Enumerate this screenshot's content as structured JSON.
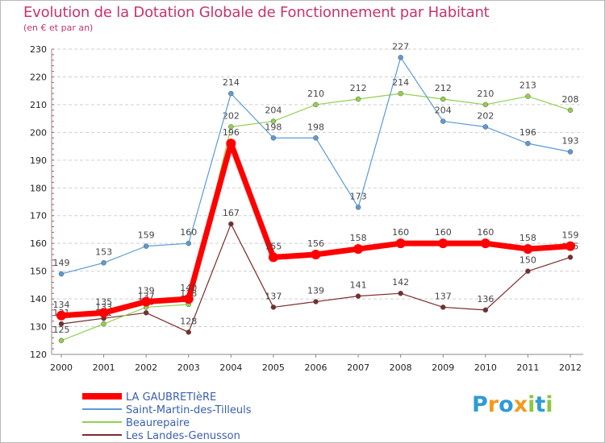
{
  "chart_data": {
    "type": "line",
    "title": "Evolution de la Dotation Globale de Fonctionnement par Habitant",
    "subtitle": "(en € et par an)",
    "xlabel": "",
    "ylabel": "",
    "x": [
      "2000",
      "2001",
      "2002",
      "2003",
      "2004",
      "2005",
      "2006",
      "2007",
      "2008",
      "2009",
      "2010",
      "2011",
      "2012"
    ],
    "ylim": [
      120,
      230
    ],
    "yticks": [
      120,
      130,
      140,
      150,
      160,
      170,
      180,
      190,
      200,
      210,
      220,
      230
    ],
    "grid": "horizontal",
    "legend": "bottom-left",
    "series": [
      {
        "name": "LA GAUBRETIèRE",
        "color": "#ff0000",
        "values": [
          134,
          135,
          139,
          140,
          196,
          155,
          156,
          158,
          160,
          160,
          160,
          158,
          159
        ]
      },
      {
        "name": "Saint-Martin-des-Tilleuls",
        "color": "#5b9bd5",
        "values": [
          149,
          153,
          159,
          160,
          214,
          198,
          198,
          173,
          227,
          204,
          202,
          196,
          193
        ]
      },
      {
        "name": "Beaurepaire",
        "color": "#92d050",
        "values": [
          125,
          131,
          137,
          138,
          202,
          204,
          210,
          212,
          214,
          212,
          210,
          213,
          208
        ]
      },
      {
        "name": "Les Landes-Genusson",
        "color": "#7b2c2c",
        "values": [
          131,
          133,
          135,
          128,
          167,
          137,
          139,
          141,
          142,
          137,
          136,
          150,
          155
        ]
      }
    ]
  },
  "logo": {
    "letters": [
      {
        "ch": "P",
        "color": "#2e9bd6"
      },
      {
        "ch": "r",
        "color": "#f39a1e"
      },
      {
        "ch": "o",
        "color": "#2e9bd6"
      },
      {
        "ch": "x",
        "color": "#f39a1e"
      },
      {
        "ch": "i",
        "color": "#8dc63f"
      },
      {
        "ch": "t",
        "color": "#2e9bd6"
      },
      {
        "ch": "i",
        "color": "#8dc63f"
      }
    ]
  }
}
